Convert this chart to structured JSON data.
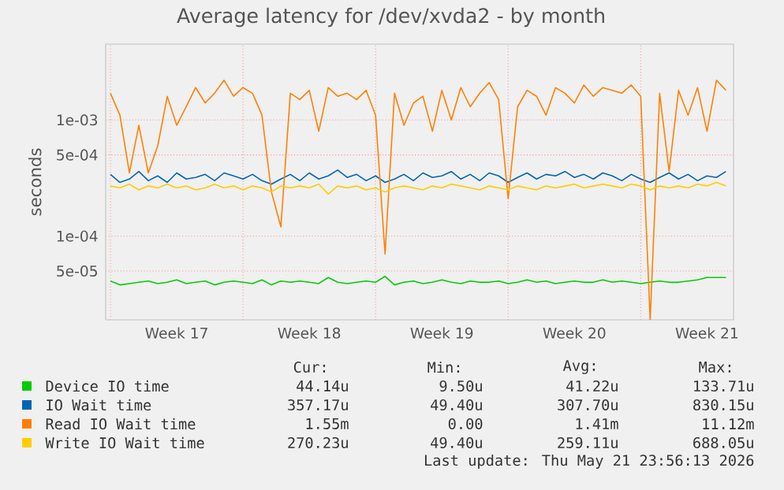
{
  "chart_data": {
    "type": "line",
    "title": "Average latency for /dev/xvda2 - by month",
    "ylabel": "seconds",
    "log": "y",
    "grid": true,
    "legend": "bottom",
    "marker": "none",
    "categories": [
      null,
      null,
      null,
      null,
      null,
      null,
      null,
      "Week 17",
      null,
      null,
      null,
      null,
      null,
      null,
      null,
      null,
      null,
      null,
      null,
      null,
      null,
      "Week 18",
      null,
      null,
      null,
      null,
      null,
      null,
      null,
      null,
      null,
      null,
      null,
      null,
      null,
      "Week 19",
      null,
      null,
      null,
      null,
      null,
      null,
      null,
      null,
      null,
      null,
      null,
      null,
      null,
      "Week 20",
      null,
      null,
      null,
      null,
      null,
      null,
      null,
      null,
      null,
      null,
      null,
      null,
      null,
      "Week 21",
      null,
      null
    ],
    "ylim": [
      1.9e-05,
      0.0045
    ],
    "yticks": [
      {
        "value": 5e-05,
        "label": "5e-05"
      },
      {
        "value": 0.0001,
        "label": "1e-04"
      },
      {
        "value": 0.0005,
        "label": "5e-04"
      },
      {
        "value": 0.001,
        "label": "1e-03"
      }
    ],
    "series": [
      {
        "name": "Device IO time",
        "color": "#00cc00",
        "values": [
          4.1e-05,
          3.8e-05,
          3.9e-05,
          4e-05,
          4.1e-05,
          3.9e-05,
          4e-05,
          4.2e-05,
          3.9e-05,
          4e-05,
          4.1e-05,
          3.8e-05,
          4e-05,
          4.1e-05,
          4e-05,
          3.9e-05,
          4.2e-05,
          3.8e-05,
          4.1e-05,
          4e-05,
          4.1e-05,
          4e-05,
          3.9e-05,
          4.4e-05,
          4e-05,
          3.9e-05,
          4e-05,
          4.1e-05,
          4e-05,
          4.5e-05,
          3.8e-05,
          4e-05,
          4.1e-05,
          3.9e-05,
          4e-05,
          4.2e-05,
          4e-05,
          3.9e-05,
          4.1e-05,
          4e-05,
          4e-05,
          4.1e-05,
          3.9e-05,
          4e-05,
          4.2e-05,
          4e-05,
          4.1e-05,
          3.9e-05,
          4e-05,
          4.1e-05,
          4e-05,
          4e-05,
          4.2e-05,
          4e-05,
          4.1e-05,
          4e-05,
          3.9e-05,
          4e-05,
          4.1e-05,
          4e-05,
          4e-05,
          4.1e-05,
          4.2e-05,
          4.4e-05,
          4.4e-05,
          4.4e-05
        ]
      },
      {
        "name": "IO Wait time",
        "color": "#0066b3",
        "values": [
          0.00034,
          0.00029,
          0.00031,
          0.00036,
          0.0003,
          0.00033,
          0.00029,
          0.00035,
          0.00031,
          0.00032,
          0.00034,
          0.0003,
          0.00035,
          0.00033,
          0.00031,
          0.00034,
          0.0003,
          0.00028,
          0.00031,
          0.00034,
          0.0003,
          0.00035,
          0.00031,
          0.00033,
          0.00037,
          0.00032,
          0.00034,
          0.0003,
          0.00033,
          0.00029,
          0.00031,
          0.00034,
          0.0003,
          0.00035,
          0.00032,
          0.00033,
          0.00036,
          0.00031,
          0.00034,
          0.0003,
          0.00035,
          0.00033,
          0.00029,
          0.00032,
          0.00035,
          0.00031,
          0.00034,
          0.00033,
          0.00036,
          0.00032,
          0.00034,
          0.00031,
          0.00035,
          0.00033,
          0.0003,
          0.00034,
          0.00031,
          0.00029,
          0.00032,
          0.00035,
          0.00031,
          0.00034,
          0.0003,
          0.00033,
          0.00032,
          0.00036
        ]
      },
      {
        "name": "Read IO Wait time",
        "color": "#ff8000",
        "values": [
          0.0017,
          0.0011,
          0.00035,
          0.0009,
          0.00035,
          0.0006,
          0.0016,
          0.0009,
          0.0013,
          0.0019,
          0.0014,
          0.0017,
          0.0022,
          0.0016,
          0.0019,
          0.0017,
          0.0011,
          0.00024,
          0.00012,
          0.0017,
          0.0015,
          0.0018,
          0.0008,
          0.0019,
          0.0016,
          0.0017,
          0.0015,
          0.0018,
          0.0011,
          7e-05,
          0.0017,
          0.0009,
          0.0014,
          0.0016,
          0.0008,
          0.0018,
          0.001,
          0.0019,
          0.0013,
          0.0017,
          0.0021,
          0.0015,
          0.00021,
          0.0013,
          0.0018,
          0.0016,
          0.0011,
          0.0019,
          0.0017,
          0.0014,
          0.002,
          0.0016,
          0.0019,
          0.0018,
          0.0017,
          0.002,
          0.0016,
          1.9e-05,
          0.0017,
          0.00036,
          0.0018,
          0.0011,
          0.0019,
          0.0008,
          0.0022,
          0.0018
        ]
      },
      {
        "name": "Write IO Wait time",
        "color": "#ffcc00",
        "values": [
          0.00027,
          0.00026,
          0.00028,
          0.00025,
          0.00027,
          0.00026,
          0.00028,
          0.00026,
          0.00027,
          0.00025,
          0.00026,
          0.00028,
          0.00026,
          0.00027,
          0.00025,
          0.00027,
          0.00026,
          0.00024,
          0.00027,
          0.00026,
          0.00027,
          0.00026,
          0.00028,
          0.00023,
          0.00027,
          0.00026,
          0.00027,
          0.00025,
          0.00026,
          0.00024,
          0.00026,
          0.00027,
          0.00026,
          0.00025,
          0.00027,
          0.00026,
          0.00028,
          0.00027,
          0.00026,
          0.00025,
          0.00027,
          0.00026,
          0.00025,
          0.00027,
          0.00026,
          0.00025,
          0.00027,
          0.00026,
          0.00027,
          0.00028,
          0.00026,
          0.00027,
          0.00028,
          0.00027,
          0.00026,
          0.00028,
          0.00027,
          0.00025,
          0.00027,
          0.00026,
          0.00027,
          0.00026,
          0.00028,
          0.00027,
          0.00029,
          0.00027
        ]
      }
    ],
    "annotations": [
      "Cur:",
      "Min:",
      "Avg:",
      "Max:",
      "44.14u",
      "9.50u",
      "41.22u",
      "133.71u",
      "357.17u",
      "49.40u",
      "307.70u",
      "830.15u",
      "1.55m",
      "0.00",
      "1.41m",
      "11.12m",
      "270.23u",
      "49.40u",
      "259.11u",
      "688.05u",
      "Last update: Thu May 21 23:56:13 2026"
    ]
  }
}
